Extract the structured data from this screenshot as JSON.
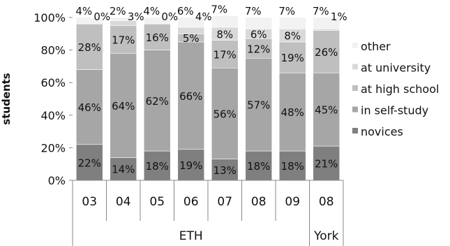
{
  "chart_data": {
    "type": "bar",
    "stacked": true,
    "ylabel": "students",
    "ylim": [
      0,
      100
    ],
    "yticks": [
      "0%",
      "20%",
      "40%",
      "60%",
      "80%",
      "100%"
    ],
    "grid": false,
    "legend_position": "right",
    "categories": [
      "03",
      "04",
      "05",
      "06",
      "07",
      "08",
      "09",
      "08"
    ],
    "groups": [
      {
        "label": "ETH",
        "span": 7
      },
      {
        "label": "York",
        "span": 1
      }
    ],
    "series": [
      {
        "name": "novices",
        "color": "#7f7f7f",
        "values": [
          22,
          14,
          18,
          19,
          13,
          18,
          18,
          21
        ],
        "labels": [
          "22%",
          "14%",
          "18%",
          "19%",
          "13%",
          "18%",
          "18%",
          "21%"
        ]
      },
      {
        "name": "in self-study",
        "color": "#a6a6a6",
        "values": [
          46,
          64,
          62,
          66,
          56,
          57,
          48,
          45
        ],
        "labels": [
          "46%",
          "64%",
          "62%",
          "66%",
          "56%",
          "57%",
          "48%",
          "45%"
        ]
      },
      {
        "name": "at high school",
        "color": "#bfbfbf",
        "values": [
          28,
          17,
          16,
          5,
          17,
          12,
          19,
          26
        ],
        "labels": [
          "28%",
          "17%",
          "16%",
          "5%",
          "17%",
          "12%",
          "19%",
          "26%"
        ]
      },
      {
        "name": "at university",
        "color": "#d9d9d9",
        "values": [
          0,
          3,
          0,
          4,
          8,
          6,
          8,
          1
        ],
        "labels": [
          "0%",
          "3%",
          "0%",
          "4%",
          "8%",
          "6%",
          "8%",
          "1%"
        ]
      },
      {
        "name": "other",
        "color": "#f2f2f2",
        "values": [
          4,
          2,
          4,
          6,
          7,
          7,
          7,
          7
        ],
        "labels": [
          "4%",
          "2%",
          "4%",
          "6%",
          "7%",
          "7%",
          "7%",
          "7%"
        ]
      }
    ]
  }
}
